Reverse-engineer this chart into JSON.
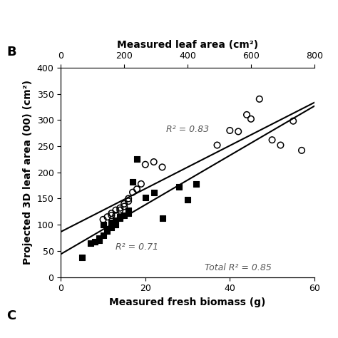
{
  "title_top_xlabel": "Measured leaf area (cm²)",
  "top_xticks": [
    0,
    200,
    400,
    600,
    800
  ],
  "xlabel": "Measured fresh biomass (g)",
  "ylabel": "Projected 3D leaf area (00) (cm²)",
  "xlim": [
    0,
    60
  ],
  "ylim": [
    0,
    400
  ],
  "xticks": [
    0,
    20,
    40,
    60
  ],
  "yticks": [
    0,
    50,
    100,
    150,
    200,
    250,
    300,
    350,
    400
  ],
  "panel_label": "B",
  "panel_label_C": "C",
  "r2_circles": "R² = 0.83",
  "r2_squares": "R² = 0.71",
  "r2_total": "Total R² = 0.85",
  "circles_x": [
    10,
    11,
    12,
    12,
    13,
    13,
    14,
    14,
    15,
    15,
    16,
    16,
    17,
    18,
    19,
    20,
    22,
    24,
    37,
    40,
    42,
    44,
    45,
    47,
    50,
    52,
    55,
    57
  ],
  "circles_y": [
    110,
    115,
    118,
    122,
    118,
    128,
    128,
    132,
    135,
    140,
    145,
    150,
    162,
    168,
    178,
    215,
    220,
    210,
    252,
    280,
    278,
    310,
    302,
    340,
    262,
    252,
    298,
    242
  ],
  "squares_x": [
    5,
    7,
    8,
    9,
    9,
    10,
    10,
    11,
    11,
    12,
    12,
    12,
    13,
    13,
    14,
    14,
    15,
    16,
    16,
    17,
    18,
    20,
    22,
    24,
    28,
    30,
    32
  ],
  "squares_y": [
    38,
    65,
    68,
    70,
    75,
    80,
    100,
    88,
    92,
    95,
    100,
    105,
    100,
    108,
    112,
    115,
    118,
    122,
    128,
    182,
    225,
    152,
    162,
    112,
    172,
    148,
    178
  ],
  "bg_color": "#ffffff",
  "marker_color": "#000000",
  "line_color": "#000000",
  "annot_color": "#555555",
  "fontsize_label": 10,
  "fontsize_tick": 9,
  "fontsize_annot": 9,
  "fontsize_panel": 13
}
